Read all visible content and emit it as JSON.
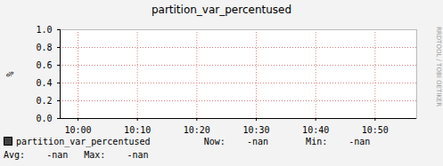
{
  "chart_data": {
    "type": "line",
    "title": "partition_var_percentused",
    "y_label": "%",
    "x": [],
    "series": [
      {
        "name": "partition_var_percentused",
        "color": "#3f3f3f",
        "values": [],
        "stats": [
          {
            "label": "Now:",
            "value": "-nan"
          },
          {
            "label": "Min:",
            "value": "-nan"
          },
          {
            "label": "Avg:",
            "value": "-nan"
          },
          {
            "label": "Max:",
            "value": "-nan"
          }
        ]
      }
    ],
    "xlim": [
      "09:57",
      "10:57"
    ],
    "xticks": [
      "10:00",
      "10:10",
      "10:20",
      "10:30",
      "10:40",
      "10:50"
    ],
    "ylim": [
      0,
      1
    ],
    "yticks": [
      {
        "value": 0,
        "label": "0.0"
      },
      0.2,
      0.4,
      0.6,
      0.8,
      {
        "value": 1,
        "label": "1.0"
      }
    ],
    "grid": true,
    "watermark": "RRDTOOL / TOBI OETIKER"
  }
}
